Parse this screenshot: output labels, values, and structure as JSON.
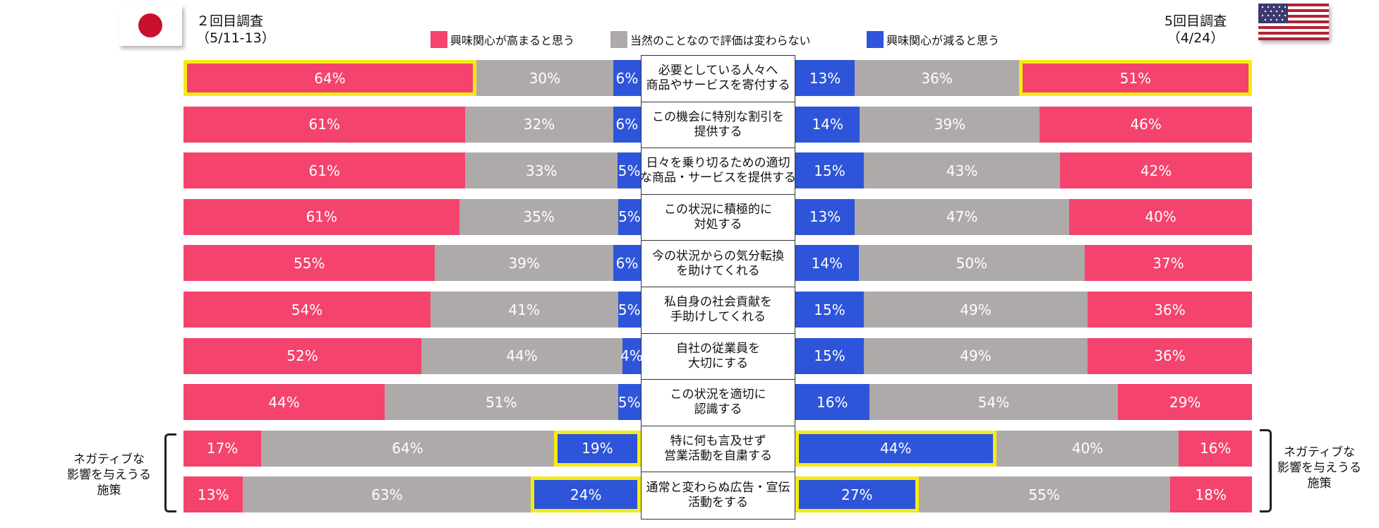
{
  "header": {
    "left_survey": "２回目調査\n（5/11-13）",
    "right_survey": "5回目調査\n（4/24）"
  },
  "legend": [
    {
      "label": "興味関心が高まると思う",
      "color": "#f4436c"
    },
    {
      "label": "当然のことなので評価は変わらない",
      "color": "#aeaaaa"
    },
    {
      "label": "興味関心が減ると思う",
      "color": "#2e55d9"
    }
  ],
  "side_notes": {
    "left": "ネガティブな\n影響を与えうる\n施策",
    "right": "ネガティブな\n影響を与えうる\n施策"
  },
  "chart_data": {
    "type": "bar",
    "stacked": true,
    "orientation": "horizontal",
    "categories": [
      "必要としている人々へ\n商品やサービスを寄付する",
      "この機会に特別な割引を\n提供する",
      "日々を乗り切るための適切\nな商品・サービスを提供する",
      "この状況に積極的に\n対処する",
      "今の状況からの気分転換\nを助けてくれる",
      "私自身の社会貢献を\n手助けしてくれる",
      "自社の従業員を\n大切にする",
      "この状況を適切に\n認識する",
      "特に何も言及せず\n営業活動を自粛する",
      "通常と変わらぬ広告・宣伝\n活動をする"
    ],
    "panels": [
      {
        "name": "２回目調査（5/11-13）",
        "order": [
          "increase",
          "same",
          "decrease"
        ],
        "series": [
          {
            "name": "興味関心が高まると思う",
            "key": "increase",
            "values": [
              64,
              61,
              61,
              61,
              55,
              54,
              52,
              44,
              17,
              13
            ]
          },
          {
            "name": "当然のことなので評価は変わらない",
            "key": "same",
            "values": [
              30,
              32,
              33,
              35,
              39,
              41,
              44,
              51,
              64,
              63
            ]
          },
          {
            "name": "興味関心が減ると思う",
            "key": "decrease",
            "values": [
              6,
              6,
              5,
              5,
              6,
              5,
              4,
              5,
              19,
              24
            ]
          }
        ],
        "highlight": [
          [
            0,
            "increase"
          ],
          [
            8,
            "decrease"
          ],
          [
            9,
            "decrease"
          ]
        ]
      },
      {
        "name": "5回目調査（4/24）",
        "order": [
          "decrease",
          "same",
          "increase"
        ],
        "series": [
          {
            "name": "興味関心が減ると思う",
            "key": "decrease",
            "values": [
              13,
              14,
              15,
              13,
              14,
              15,
              15,
              16,
              44,
              27
            ]
          },
          {
            "name": "当然のことなので評価は変わらない",
            "key": "same",
            "values": [
              36,
              39,
              43,
              47,
              50,
              49,
              49,
              54,
              40,
              55
            ]
          },
          {
            "name": "興味関心が高まると思う",
            "key": "increase",
            "values": [
              51,
              46,
              42,
              40,
              37,
              36,
              36,
              29,
              16,
              18
            ]
          }
        ],
        "highlight": [
          [
            0,
            "increase"
          ],
          [
            8,
            "decrease"
          ],
          [
            9,
            "decrease"
          ]
        ]
      }
    ],
    "value_suffix": "%",
    "xlim": [
      0,
      100
    ],
    "legend_position": "top"
  }
}
